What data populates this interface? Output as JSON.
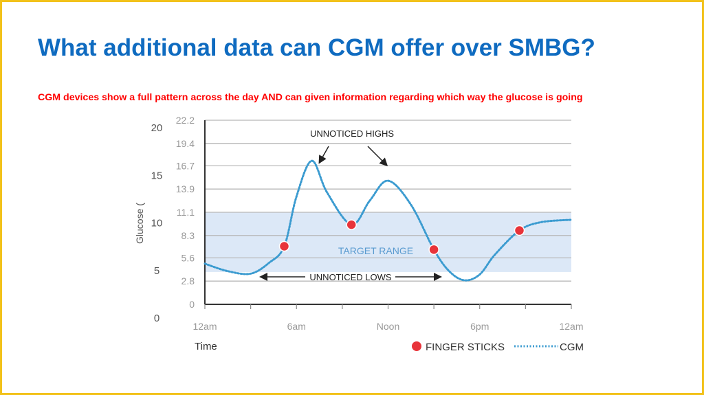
{
  "slide": {
    "title": "What additional data can CGM offer over SMBG?",
    "subtitle": "CGM devices show a full pattern across the day AND can given information regarding which way the glucose is going"
  },
  "colors": {
    "border": "#f2c21b",
    "title": "#0f6bc0",
    "subtitle": "#ff0000",
    "cgm": "#3b9bd0",
    "finger": "#e8343a",
    "band": "#dce8f7"
  },
  "chart_data": {
    "type": "line",
    "xlabel": "Time",
    "ylabel": "Glucose (",
    "x_ticks": [
      "12am",
      "6am",
      "Noon",
      "6pm",
      "12am"
    ],
    "x_tick_hours": [
      0,
      6,
      12,
      18,
      24
    ],
    "xlim": [
      0,
      24
    ],
    "y_ticks": [
      "0",
      "2.8",
      "5.6",
      "8.3",
      "11.1",
      "13.9",
      "16.7",
      "19.4",
      "22.2"
    ],
    "y_tick_values": [
      0,
      2.8,
      5.6,
      8.3,
      11.1,
      13.9,
      16.7,
      19.4,
      22.2
    ],
    "outer_y_ticks": [
      "0",
      "5",
      "10",
      "15",
      "20"
    ],
    "outer_y_values": [
      0,
      5,
      10,
      15,
      20
    ],
    "ylim": [
      0,
      22.2
    ],
    "target_range": {
      "label": "TARGET RANGE",
      "low": 3.9,
      "high": 11.1
    },
    "annotations": {
      "highs": "UNNOTICED HIGHS",
      "lows": "UNNOTICED LOWS"
    },
    "series": [
      {
        "name": "CGM",
        "x": [
          0,
          1.5,
          3,
          4.2,
          5.2,
          6,
          7,
          8,
          9.6,
          10.8,
          12,
          13.5,
          15,
          16,
          17,
          18,
          19,
          20.6,
          22,
          24
        ],
        "values": [
          4.9,
          4.0,
          3.7,
          5.0,
          7.0,
          13.0,
          17.3,
          13.5,
          9.6,
          12.5,
          14.9,
          12.0,
          6.6,
          4.0,
          2.9,
          3.6,
          6.0,
          8.9,
          9.9,
          10.2
        ]
      },
      {
        "name": "FINGER STICKS",
        "x": [
          5.2,
          9.6,
          15,
          20.6
        ],
        "values": [
          7.0,
          9.6,
          6.6,
          8.9
        ]
      }
    ],
    "legend": [
      "FINGER STICKS",
      "CGM"
    ],
    "legend_position": "bottom-right",
    "grid": true
  }
}
